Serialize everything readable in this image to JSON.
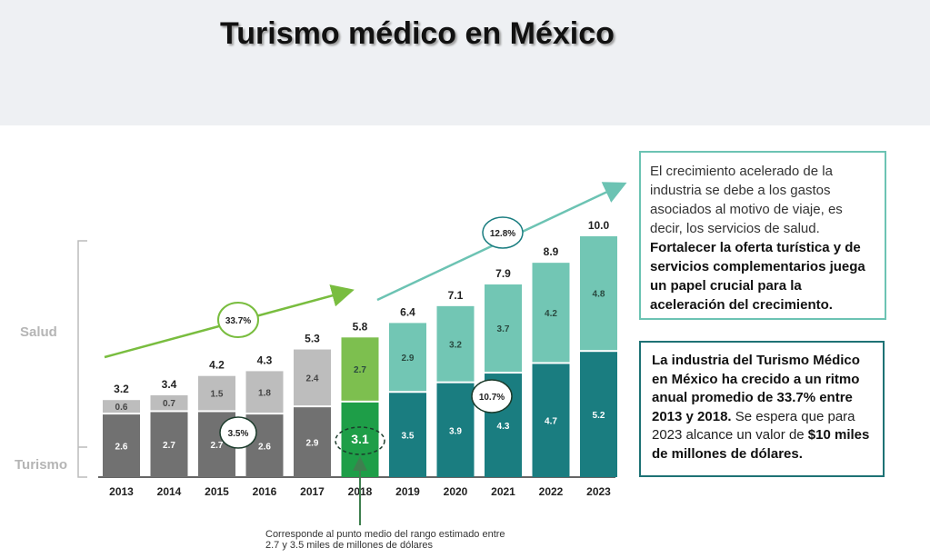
{
  "title": "Turismo médico en México",
  "chart_data": {
    "type": "bar",
    "stacked": true,
    "categories": [
      "2013",
      "2014",
      "2015",
      "2016",
      "2017",
      "2018",
      "2019",
      "2020",
      "2021",
      "2022",
      "2023"
    ],
    "series": [
      {
        "name": "Turismo",
        "values": [
          2.6,
          2.7,
          2.7,
          2.6,
          2.9,
          3.1,
          3.5,
          3.9,
          4.3,
          4.7,
          5.2
        ]
      },
      {
        "name": "Salud",
        "values": [
          0.6,
          0.7,
          1.5,
          1.8,
          2.4,
          2.7,
          2.9,
          3.2,
          3.7,
          4.2,
          4.8
        ]
      }
    ],
    "totals": [
      3.2,
      3.4,
      4.2,
      4.3,
      5.3,
      5.8,
      6.4,
      7.1,
      7.9,
      8.9,
      10.0
    ],
    "total_labels": [
      "3.2",
      "3.4",
      "4.2",
      "4.3",
      "5.3",
      "5.8",
      "6.4",
      "7.1",
      "7.9",
      "8.9",
      "10.0"
    ],
    "segment_labels": {
      "bottom": [
        "2.6",
        "2.7",
        "2.7",
        "2.6",
        "2.9",
        "3.1",
        "3.5",
        "3.9",
        "4.3",
        "4.7",
        "5.2"
      ],
      "top": [
        "0.6",
        "0.7",
        "1.5",
        "1.8",
        "2.4",
        "2.7",
        "2.9",
        "3.2",
        "3.7",
        "4.2",
        "4.8"
      ]
    },
    "group_labels": [
      "Salud",
      "Turismo"
    ],
    "growth_annotations": [
      "33.7%",
      "12.8%",
      "3.5%",
      "10.7%"
    ],
    "colors": {
      "historic_top": "#bdbdbd",
      "historic_bottom": "#717171",
      "current_top": "#7dbf4f",
      "current_bottom": "#1e9e48",
      "forecast_top": "#72c6b4",
      "forecast_bottom": "#1a7d80",
      "arrow": "#6cc3b3",
      "arrow_historic": "#79bd3f"
    },
    "ylim": [
      0,
      10.5
    ]
  },
  "box1": {
    "text": "El crecimiento acelerado de la industria se debe a los gastos asociados al motivo de viaje, es decir, los servicios de salud. ",
    "bold": "Fortalecer la oferta turística y de servicios complementarios juega un papel crucial para la aceleración del crecimiento."
  },
  "box2": {
    "bold1": "La industria del Turismo Médico en México ha crecido a un ritmo anual promedio de 33.7% entre 2013 y 2018.",
    "text": " Se espera que para 2023 alcance un valor de ",
    "bold2": "$10 miles de millones de dólares."
  },
  "footnote": "Corresponde al punto medio del rango estimado entre 2.7 y 3.5 miles de millones de dólares"
}
